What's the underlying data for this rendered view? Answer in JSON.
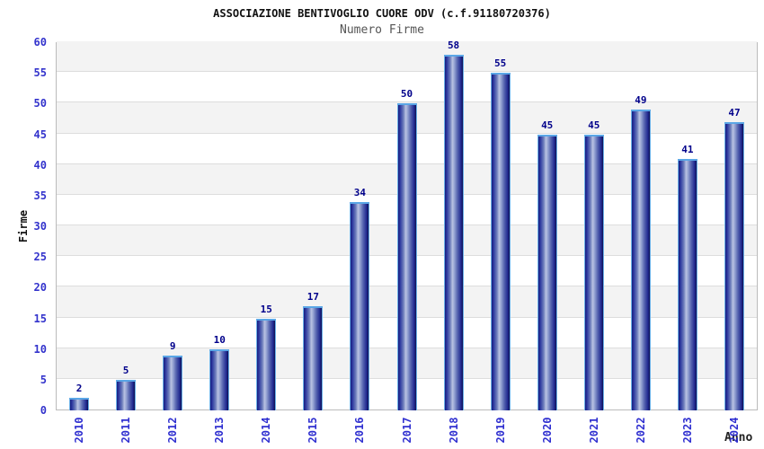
{
  "header": {
    "title": "ASSOCIAZIONE BENTIVOGLIO CUORE ODV (c.f.91180720376)",
    "subtitle": "Numero Firme"
  },
  "chart_data": {
    "type": "bar",
    "title": "ASSOCIAZIONE BENTIVOGLIO CUORE ODV (c.f.91180720376)",
    "subtitle": "Numero Firme",
    "xlabel": "Anno",
    "ylabel": "Firme",
    "categories": [
      "2010",
      "2011",
      "2012",
      "2013",
      "2014",
      "2015",
      "2016",
      "2017",
      "2018",
      "2019",
      "2020",
      "2021",
      "2022",
      "2023",
      "2024"
    ],
    "values": [
      2,
      5,
      9,
      10,
      15,
      17,
      34,
      50,
      58,
      55,
      45,
      45,
      49,
      41,
      47
    ],
    "ylim": [
      0,
      60
    ],
    "ytick_step": 5,
    "yticks": [
      0,
      5,
      10,
      15,
      20,
      25,
      30,
      35,
      40,
      45,
      50,
      55,
      60
    ],
    "grid": "horizontal-bands-alternating",
    "legend": "none",
    "colors": {
      "bar_dark": "#1a1f8a",
      "bar_highlight": "#bac3e2",
      "bar_edge": "#6cb1e8",
      "value_label": "#00008b",
      "axis_tick_label": "#3333cc",
      "band_gray": "#f3f3f3",
      "band_white": "#ffffff",
      "gridline": "#dddddd",
      "plot_border": "#bbbbbb",
      "title": "#111111",
      "subtitle": "#555555"
    }
  }
}
